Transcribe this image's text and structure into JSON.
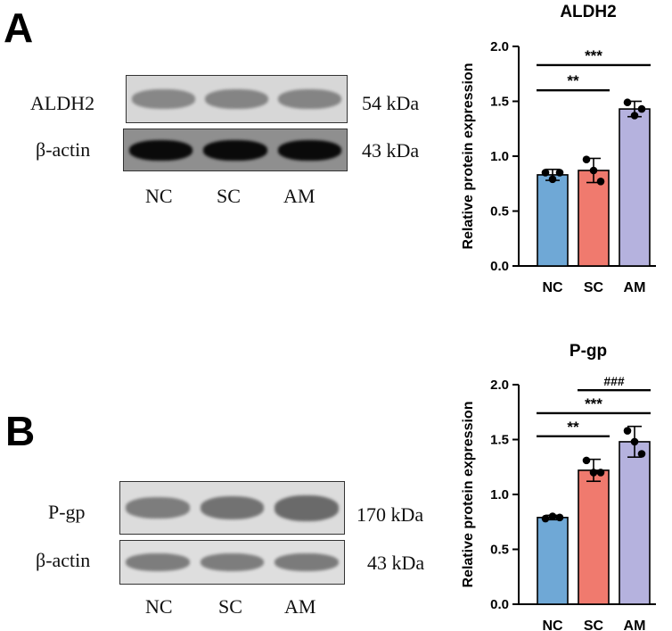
{
  "panels": [
    {
      "letter": "A",
      "blots": [
        {
          "label": "ALDH2",
          "size": "54 kDa",
          "background": "#d7d7d7",
          "band_color": "#7a7a7a",
          "intensity": [
            0.75,
            0.8,
            0.8
          ]
        },
        {
          "label": "β-actin",
          "size": "43 kDa",
          "background": "#8f8f8f",
          "band_color": "#0a0a0a",
          "intensity": [
            1,
            1,
            1
          ]
        }
      ],
      "lanes": [
        "NC",
        "SC",
        "AM"
      ]
    },
    {
      "letter": "B",
      "blots": [
        {
          "label": "P-gp",
          "size": "170 kDa",
          "background": "#dcdcdc",
          "band_color": "#6a6a6a",
          "intensity": [
            0.7,
            0.85,
            1
          ]
        },
        {
          "label": "β-actin",
          "size": "43 kDa",
          "background": "#dedede",
          "band_color": "#6e6e6e",
          "intensity": [
            0.75,
            0.75,
            0.78
          ]
        }
      ],
      "lanes": [
        "NC",
        "SC",
        "AM"
      ]
    }
  ],
  "chart_data": [
    {
      "type": "bar",
      "title": "ALDH2",
      "ylabel": "Relative protein expression",
      "categories": [
        "NC",
        "SC",
        "AM"
      ],
      "values": [
        0.83,
        0.87,
        1.43
      ],
      "errors": [
        0.05,
        0.11,
        0.07
      ],
      "points": [
        [
          0.85,
          0.79,
          0.85
        ],
        [
          0.97,
          0.87,
          0.77
        ],
        [
          1.49,
          1.37,
          1.43
        ]
      ],
      "colors": [
        "#6fa8d6",
        "#f07a6e",
        "#b5b2de"
      ],
      "ylim": [
        0,
        2.0
      ],
      "yticks": [
        "0.0",
        "0.5",
        "1.0",
        "1.5",
        "2.0"
      ],
      "brackets": [
        {
          "from": 0,
          "to": 1,
          "label": "**",
          "y": 1.6
        },
        {
          "from": 0,
          "to": 2,
          "label": "***",
          "y": 1.83
        }
      ]
    },
    {
      "type": "bar",
      "title": "P-gp",
      "ylabel": "Relative protein expression",
      "categories": [
        "NC",
        "SC",
        "AM"
      ],
      "values": [
        0.79,
        1.22,
        1.48
      ],
      "errors": [
        0.02,
        0.1,
        0.14
      ],
      "points": [
        [
          0.78,
          0.8,
          0.79
        ],
        [
          1.31,
          1.2,
          1.2
        ],
        [
          1.58,
          1.48,
          1.37
        ]
      ],
      "colors": [
        "#6fa8d6",
        "#f07a6e",
        "#b5b2de"
      ],
      "ylim": [
        0,
        2.0
      ],
      "yticks": [
        "0.0",
        "0.5",
        "1.0",
        "1.5",
        "2.0"
      ],
      "brackets": [
        {
          "from": 0,
          "to": 1,
          "label": "**",
          "y": 1.53
        },
        {
          "from": 0,
          "to": 2,
          "label": "***",
          "y": 1.74
        },
        {
          "from": 1,
          "to": 2,
          "label": "###",
          "y": 1.95
        }
      ]
    }
  ]
}
